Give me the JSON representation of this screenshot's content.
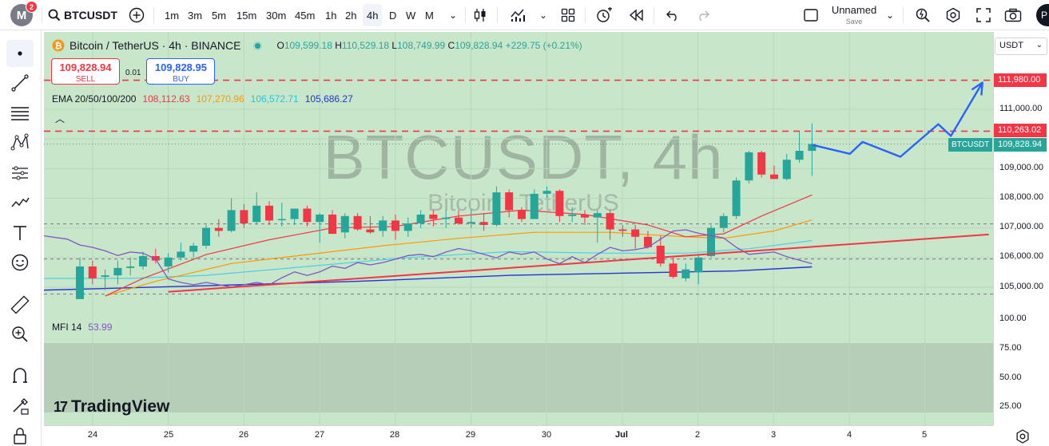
{
  "topbar": {
    "logo_letter": "M",
    "notification_count": "2",
    "symbol": "BTCUSDT",
    "timeframes": [
      "1m",
      "3m",
      "5m",
      "15m",
      "30m",
      "45m",
      "1h",
      "2h",
      "4h",
      "D",
      "W",
      "M"
    ],
    "active_timeframe": "4h",
    "layout_name": "Unnamed",
    "save_label": "Save"
  },
  "legend": {
    "name": "Bitcoin / TetherUS · 4h · BINANCE",
    "open_label": "O",
    "open": "109,599.18",
    "high_label": "H",
    "high": "110,529.18",
    "low_label": "L",
    "low": "108,749.99",
    "close_label": "C",
    "close": "109,828.94",
    "change": "+229.75 (+0.21%)"
  },
  "trade": {
    "sell_price": "109,828.94",
    "sell_label": "SELL",
    "buy_price": "109,828.95",
    "buy_label": "BUY",
    "spread": "0.01"
  },
  "ema": {
    "label": "EMA 20/50/100/200",
    "v20": "108,112.63",
    "v50": "107,270.96",
    "v100": "106,572.71",
    "v200": "105,686.27",
    "colors": {
      "v20": "#f23645",
      "v50": "#ff9800",
      "v100": "#4dd0e1",
      "v200": "#2432d6"
    }
  },
  "mfi": {
    "label": "MFI 14",
    "value": "53.99",
    "color": "#7e57c2"
  },
  "watermark": {
    "symbol": "BTCUSDT, 4h",
    "name": "Bitcoin / TetherUS"
  },
  "branding": {
    "name": "TradingView"
  },
  "price_axis": {
    "currency": "USDT",
    "ticks": [
      "111,000.00",
      "109,000.00",
      "108,000.00",
      "107,000.00",
      "106,000.00",
      "105,000.00"
    ],
    "mfi_ticks": [
      "100.00",
      "75.00",
      "50.00",
      "25.00"
    ],
    "level_high": "111,980.00",
    "level_mid": "110,263.02",
    "last_price": "109,828.94",
    "symbol_tag": "BTCUSDT"
  },
  "time_axis": {
    "labels": [
      "24",
      "25",
      "26",
      "27",
      "28",
      "29",
      "30",
      "Jul",
      "2",
      "3",
      "4",
      "5"
    ]
  },
  "chart_data": {
    "type": "candlestick",
    "symbol": "BTCUSDT",
    "interval": "4h",
    "ylim": [
      104600,
      112300
    ],
    "horizontal_levels": [
      111980.0,
      110263.02
    ],
    "last_price": 109828.94,
    "candles": [
      {
        "o": 104600,
        "h": 106000,
        "l": 104600,
        "c": 105700
      },
      {
        "o": 105700,
        "h": 105900,
        "l": 105100,
        "c": 105300
      },
      {
        "o": 105350,
        "h": 105600,
        "l": 104900,
        "c": 105400
      },
      {
        "o": 105400,
        "h": 105900,
        "l": 105100,
        "c": 105650
      },
      {
        "o": 105650,
        "h": 106000,
        "l": 105400,
        "c": 105700
      },
      {
        "o": 105700,
        "h": 106200,
        "l": 105600,
        "c": 106050
      },
      {
        "o": 106050,
        "h": 106300,
        "l": 105800,
        "c": 105900
      },
      {
        "o": 105700,
        "h": 106150,
        "l": 105500,
        "c": 106000
      },
      {
        "o": 106000,
        "h": 106500,
        "l": 105900,
        "c": 106200
      },
      {
        "o": 106200,
        "h": 106500,
        "l": 106000,
        "c": 106400
      },
      {
        "o": 106400,
        "h": 107100,
        "l": 106300,
        "c": 107000
      },
      {
        "o": 107000,
        "h": 107300,
        "l": 106700,
        "c": 106900
      },
      {
        "o": 106900,
        "h": 108000,
        "l": 106850,
        "c": 107600
      },
      {
        "o": 107600,
        "h": 107800,
        "l": 107000,
        "c": 107150
      },
      {
        "o": 107200,
        "h": 108200,
        "l": 107100,
        "c": 107750
      },
      {
        "o": 107750,
        "h": 107900,
        "l": 107100,
        "c": 107250
      },
      {
        "o": 107300,
        "h": 107850,
        "l": 107050,
        "c": 107300
      },
      {
        "o": 107300,
        "h": 107650,
        "l": 107100,
        "c": 107650
      },
      {
        "o": 107650,
        "h": 107750,
        "l": 107050,
        "c": 107200
      },
      {
        "o": 107200,
        "h": 107500,
        "l": 106500,
        "c": 107450
      },
      {
        "o": 107450,
        "h": 107600,
        "l": 106800,
        "c": 106800
      },
      {
        "o": 106850,
        "h": 107500,
        "l": 106650,
        "c": 107400
      },
      {
        "o": 107400,
        "h": 107500,
        "l": 106900,
        "c": 106950
      },
      {
        "o": 106950,
        "h": 107400,
        "l": 106800,
        "c": 106850
      },
      {
        "o": 106900,
        "h": 107400,
        "l": 106700,
        "c": 107250
      },
      {
        "o": 107250,
        "h": 107450,
        "l": 106600,
        "c": 106900
      },
      {
        "o": 106900,
        "h": 107350,
        "l": 106700,
        "c": 107150
      },
      {
        "o": 107150,
        "h": 107600,
        "l": 107000,
        "c": 107450
      },
      {
        "o": 107450,
        "h": 107600,
        "l": 107050,
        "c": 107300
      },
      {
        "o": 107300,
        "h": 107600,
        "l": 107000,
        "c": 107350
      },
      {
        "o": 107350,
        "h": 107600,
        "l": 107100,
        "c": 107150
      },
      {
        "o": 107150,
        "h": 107650,
        "l": 107000,
        "c": 107200
      },
      {
        "o": 107200,
        "h": 107500,
        "l": 106900,
        "c": 107100
      },
      {
        "o": 107100,
        "h": 108400,
        "l": 107050,
        "c": 108200
      },
      {
        "o": 108200,
        "h": 108300,
        "l": 107350,
        "c": 107600
      },
      {
        "o": 107600,
        "h": 107700,
        "l": 107200,
        "c": 107300
      },
      {
        "o": 107300,
        "h": 108300,
        "l": 107300,
        "c": 108150
      },
      {
        "o": 108150,
        "h": 108400,
        "l": 108000,
        "c": 108250
      },
      {
        "o": 108250,
        "h": 108300,
        "l": 107200,
        "c": 107400
      },
      {
        "o": 107400,
        "h": 107700,
        "l": 107200,
        "c": 107450
      },
      {
        "o": 107450,
        "h": 107600,
        "l": 107100,
        "c": 107350
      },
      {
        "o": 107350,
        "h": 107600,
        "l": 106500,
        "c": 107500
      },
      {
        "o": 107500,
        "h": 107600,
        "l": 106600,
        "c": 106950
      },
      {
        "o": 106950,
        "h": 107100,
        "l": 106700,
        "c": 106900
      },
      {
        "o": 106950,
        "h": 107100,
        "l": 106300,
        "c": 106700
      },
      {
        "o": 106700,
        "h": 106900,
        "l": 106300,
        "c": 106350
      },
      {
        "o": 106400,
        "h": 106750,
        "l": 105700,
        "c": 105800
      },
      {
        "o": 105800,
        "h": 106000,
        "l": 105300,
        "c": 105350
      },
      {
        "o": 105300,
        "h": 105800,
        "l": 105200,
        "c": 105600
      },
      {
        "o": 105500,
        "h": 106100,
        "l": 105100,
        "c": 106000
      },
      {
        "o": 106050,
        "h": 107100,
        "l": 106000,
        "c": 107000
      },
      {
        "o": 107000,
        "h": 107500,
        "l": 106850,
        "c": 107400
      },
      {
        "o": 107400,
        "h": 108700,
        "l": 107300,
        "c": 108600
      },
      {
        "o": 108600,
        "h": 109600,
        "l": 108500,
        "c": 109550
      },
      {
        "o": 109550,
        "h": 109600,
        "l": 108700,
        "c": 108800
      },
      {
        "o": 108800,
        "h": 109100,
        "l": 108650,
        "c": 108650
      },
      {
        "o": 108650,
        "h": 109500,
        "l": 108600,
        "c": 109300
      },
      {
        "o": 109300,
        "h": 110250,
        "l": 109200,
        "c": 109600
      },
      {
        "o": 109599.18,
        "h": 110529.18,
        "l": 108749.99,
        "c": 109828.94
      }
    ],
    "ema20": [
      [
        2,
        104700
      ],
      [
        5,
        105300
      ],
      [
        10,
        106100
      ],
      [
        15,
        106600
      ],
      [
        20,
        107000
      ],
      [
        25,
        107050
      ],
      [
        30,
        107400
      ],
      [
        35,
        107600
      ],
      [
        40,
        107450
      ],
      [
        45,
        107100
      ],
      [
        48,
        106700
      ],
      [
        51,
        106800
      ],
      [
        54,
        107400
      ],
      [
        58,
        108112.63
      ]
    ],
    "ema50": [
      [
        2,
        104700
      ],
      [
        6,
        105200
      ],
      [
        12,
        105800
      ],
      [
        18,
        106100
      ],
      [
        24,
        106400
      ],
      [
        30,
        106650
      ],
      [
        36,
        106850
      ],
      [
        42,
        106850
      ],
      [
        48,
        106700
      ],
      [
        51,
        106650
      ],
      [
        55,
        106900
      ],
      [
        58,
        107270.96
      ]
    ],
    "ema100": [
      [
        -3,
        105300
      ],
      [
        4,
        105300
      ],
      [
        10,
        105400
      ],
      [
        18,
        105700
      ],
      [
        26,
        106000
      ],
      [
        34,
        106200
      ],
      [
        42,
        106150
      ],
      [
        48,
        106150
      ],
      [
        53,
        106300
      ],
      [
        58,
        106572.71
      ]
    ],
    "ema200": [
      [
        -3,
        104900
      ],
      [
        10,
        105050
      ],
      [
        22,
        105200
      ],
      [
        34,
        105400
      ],
      [
        46,
        105500
      ],
      [
        52,
        105550
      ],
      [
        58,
        105686.27
      ]
    ],
    "projection": [
      [
        58,
        109800
      ],
      [
        61,
        109500
      ],
      [
        62,
        109900
      ],
      [
        65,
        109400
      ],
      [
        68,
        110500
      ],
      [
        69,
        110100
      ],
      [
        71.5,
        111900
      ]
    ],
    "mfi_ylim": [
      0,
      100
    ],
    "mfi": [
      [
        -3,
        30
      ],
      [
        -1,
        33
      ],
      [
        0,
        38
      ],
      [
        1,
        40
      ],
      [
        2,
        43
      ],
      [
        3,
        47
      ],
      [
        4,
        44
      ],
      [
        5,
        45
      ],
      [
        6,
        50
      ],
      [
        7,
        67
      ],
      [
        8,
        70
      ],
      [
        9,
        72
      ],
      [
        10,
        70
      ],
      [
        11,
        72
      ],
      [
        12,
        74
      ],
      [
        13,
        72
      ],
      [
        14,
        70
      ],
      [
        15,
        72
      ],
      [
        16,
        66
      ],
      [
        17,
        61
      ],
      [
        18,
        64
      ],
      [
        19,
        61
      ],
      [
        20,
        56
      ],
      [
        21,
        58
      ],
      [
        22,
        53
      ],
      [
        23,
        55
      ],
      [
        24,
        53
      ],
      [
        25,
        50
      ],
      [
        26,
        47
      ],
      [
        27,
        46
      ],
      [
        28,
        48
      ],
      [
        29,
        44
      ],
      [
        30,
        41
      ],
      [
        31,
        43
      ],
      [
        32,
        46
      ],
      [
        33,
        49
      ],
      [
        34,
        44
      ],
      [
        35,
        46
      ],
      [
        36,
        44
      ],
      [
        37,
        50
      ],
      [
        38,
        54
      ],
      [
        39,
        48
      ],
      [
        40,
        53
      ],
      [
        41,
        46
      ],
      [
        42,
        40
      ],
      [
        43,
        43
      ],
      [
        44,
        42
      ],
      [
        45,
        40
      ],
      [
        46,
        33
      ],
      [
        47,
        26
      ],
      [
        48,
        25
      ],
      [
        49,
        28
      ],
      [
        50,
        30
      ],
      [
        51,
        32
      ],
      [
        52,
        40
      ],
      [
        53,
        46
      ],
      [
        54,
        45
      ],
      [
        55,
        44
      ],
      [
        56,
        48
      ],
      [
        57,
        51
      ],
      [
        58,
        53.99
      ]
    ],
    "mfi_trendline": [
      [
        7,
        78
      ],
      [
        72,
        29
      ]
    ],
    "mfi_levels": [
      80,
      50,
      20
    ]
  }
}
